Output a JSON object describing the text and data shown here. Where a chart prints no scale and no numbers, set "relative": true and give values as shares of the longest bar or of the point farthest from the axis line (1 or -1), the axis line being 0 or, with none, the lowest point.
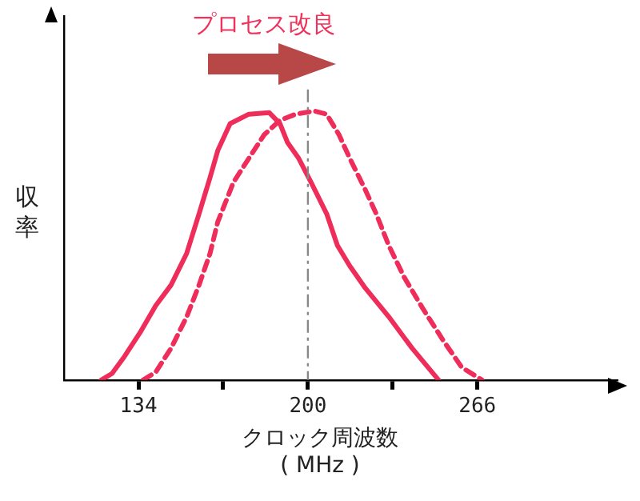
{
  "chart_data": {
    "type": "line",
    "relative": true,
    "title": "プロセス改良",
    "ylabel": "収率",
    "xlabel": "クロック周波数\n( MHz )",
    "xlim": [
      105,
      320
    ],
    "xticks": [
      134,
      {
        "value": 167,
        "label": null
      },
      200,
      {
        "value": 233,
        "label": null
      },
      266
    ],
    "grid": false,
    "legend": false,
    "marker": "none",
    "series": [
      {
        "color": "#ee2d5a",
        "line_style": "solid",
        "x": [
          119.5,
          123.7,
          128.6,
          134.6,
          140.7,
          146.7,
          152.8,
          157.6,
          161.9,
          164.9,
          169.7,
          177.0,
          184.9,
          189.1,
          192.1,
          196.4,
          201.2,
          207.3,
          211.5,
          216.3,
          222.4,
          231.5,
          240.6,
          250.9
        ],
        "values": [
          0,
          0.024,
          0.088,
          0.176,
          0.276,
          0.353,
          0.471,
          0.618,
          0.753,
          0.853,
          0.953,
          0.988,
          0.994,
          0.953,
          0.882,
          0.824,
          0.735,
          0.618,
          0.5,
          0.424,
          0.341,
          0.235,
          0.118,
          0
        ]
      },
      {
        "color": "#ee2d5a",
        "line_style": "dashed",
        "x": [
          135.8,
          140.7,
          146.7,
          152.8,
          157.6,
          161.9,
          164.9,
          171.0,
          177.0,
          183.0,
          189.1,
          195.2,
          202.4,
          207.3,
          212.1,
          216.3,
          222.4,
          226.6,
          231.5,
          237.5,
          244.8,
          252.7,
          259.9,
          267.8
        ],
        "values": [
          0,
          0.029,
          0.118,
          0.235,
          0.353,
          0.471,
          0.588,
          0.735,
          0.824,
          0.912,
          0.965,
          0.988,
          1,
          0.988,
          0.912,
          0.824,
          0.706,
          0.618,
          0.5,
          0.382,
          0.265,
          0.147,
          0.047,
          0
        ]
      }
    ],
    "ref_lines": [
      {
        "axis": "x",
        "value": 200,
        "color": "#888888",
        "line_style": "dashdot"
      }
    ]
  }
}
